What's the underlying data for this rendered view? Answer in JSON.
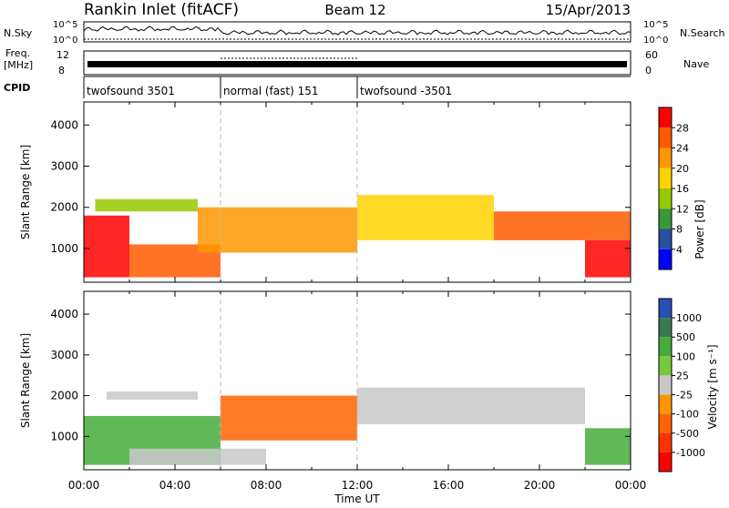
{
  "header": {
    "station": "Rankin Inlet (fitACF)",
    "beam": "Beam 12",
    "date": "15/Apr/2013"
  },
  "noise_panel": {
    "left_label": "N.Sky",
    "right_label": "N.Search",
    "left_ticks": [
      "10^5",
      "10^0"
    ],
    "right_ticks": [
      "10^5",
      "10^0"
    ]
  },
  "freq_panel": {
    "left_label_line1": "Freq.",
    "left_label_line2": "[MHz]",
    "left_ticks": [
      "12",
      "8"
    ],
    "right_label": "Nave",
    "right_ticks": [
      "60",
      "0"
    ]
  },
  "cpid_panel": {
    "label": "CPID",
    "modes": [
      {
        "name": "twofsound 3501",
        "start": "00:00",
        "end": "06:00"
      },
      {
        "name": "normal (fast) 151",
        "start": "06:00",
        "end": "12:00"
      },
      {
        "name": "twofsound -3501",
        "start": "12:00",
        "end": "24:00"
      }
    ]
  },
  "power_colorbar": {
    "label": "Power [dB]",
    "ticks": [
      "28",
      "24",
      "20",
      "16",
      "12",
      "8",
      "4"
    ],
    "colors": [
      "#ff0000",
      "#ff5a00",
      "#ff9600",
      "#ffd200",
      "#96c800",
      "#3c963c",
      "#2850a0",
      "#0000ff"
    ]
  },
  "velocity_colorbar": {
    "label": "Velocity [m s⁻¹]",
    "ticks": [
      "1000",
      "500",
      "100",
      "25",
      "-25",
      "-100",
      "-500",
      "-1000"
    ],
    "colors": [
      "#2850b4",
      "#3c7850",
      "#46aa3c",
      "#78c83c",
      "#c8c8c8",
      "#ff9600",
      "#ff6400",
      "#ff3200",
      "#ff0000"
    ]
  },
  "time_axis": {
    "label": "Time UT",
    "ticks": [
      "00:00",
      "04:00",
      "08:00",
      "12:00",
      "16:00",
      "20:00",
      "00:00"
    ]
  },
  "chart_data": [
    {
      "type": "heatmap",
      "title": "",
      "xlabel": "Time UT",
      "ylabel": "Slant Range [km]",
      "xlim": [
        0,
        24
      ],
      "ylim": [
        180,
        4560
      ],
      "yticks": [
        1000,
        2000,
        3000,
        4000
      ],
      "colorbar": "Power [dB]",
      "bands": [
        {
          "t0": 0.0,
          "t1": 2.0,
          "r0": 300,
          "r1": 1800,
          "value": 28
        },
        {
          "t0": 2.0,
          "t1": 6.0,
          "r0": 300,
          "r1": 1100,
          "value": 24
        },
        {
          "t0": 0.5,
          "t1": 5.0,
          "r0": 1900,
          "r1": 2200,
          "value": 12
        },
        {
          "t0": 5.0,
          "t1": 12.0,
          "r0": 900,
          "r1": 2000,
          "value": 20
        },
        {
          "t0": 12.0,
          "t1": 18.0,
          "r0": 1200,
          "r1": 2300,
          "value": 16
        },
        {
          "t0": 18.0,
          "t1": 24.0,
          "r0": 1200,
          "r1": 1900,
          "value": 24
        },
        {
          "t0": 22.0,
          "t1": 24.0,
          "r0": 300,
          "r1": 1200,
          "value": 28
        }
      ]
    },
    {
      "type": "heatmap",
      "title": "",
      "xlabel": "Time UT",
      "ylabel": "Slant Range [km]",
      "xlim": [
        0,
        24
      ],
      "ylim": [
        180,
        4560
      ],
      "yticks": [
        1000,
        2000,
        3000,
        4000
      ],
      "colorbar": "Velocity [m s⁻¹]",
      "bands": [
        {
          "t0": 0.0,
          "t1": 6.0,
          "r0": 300,
          "r1": 1500,
          "value": 100
        },
        {
          "t0": 2.0,
          "t1": 8.0,
          "r0": 300,
          "r1": 700,
          "value": 0
        },
        {
          "t0": 1.0,
          "t1": 5.0,
          "r0": 1900,
          "r1": 2100,
          "value": 0
        },
        {
          "t0": 6.0,
          "t1": 12.0,
          "r0": 900,
          "r1": 2000,
          "value": -300
        },
        {
          "t0": 12.0,
          "t1": 22.0,
          "r0": 1300,
          "r1": 2200,
          "value": 0
        },
        {
          "t0": 22.0,
          "t1": 24.0,
          "r0": 300,
          "r1": 1200,
          "value": 100
        }
      ]
    }
  ]
}
